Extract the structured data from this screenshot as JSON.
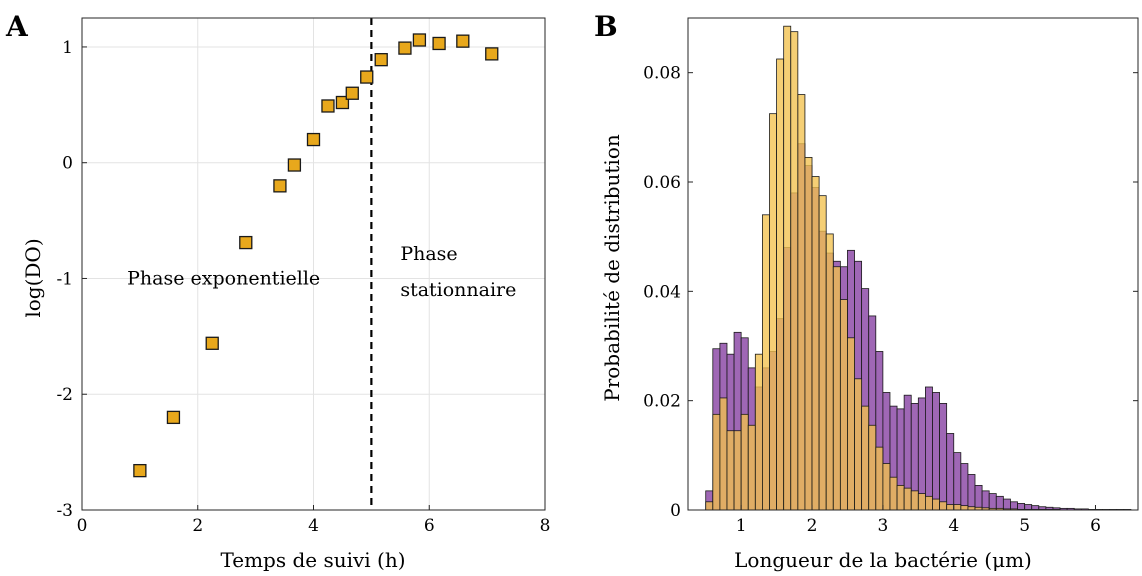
{
  "chart_data": [
    {
      "panel": "A",
      "type": "scatter",
      "xlabel": "Temps de suivi (h)",
      "ylabel": "log(DO)",
      "xlim": [
        0,
        8
      ],
      "ylim": [
        -3,
        1.25
      ],
      "xticks": [
        0,
        2,
        4,
        6,
        8
      ],
      "xtick_labels": [
        "0",
        "2",
        "4",
        "6",
        "8"
      ],
      "yticks": [
        -3,
        -2,
        -1,
        0,
        1
      ],
      "ytick_labels": [
        "-3",
        "-2",
        "-1",
        "0",
        "1"
      ],
      "grid": true,
      "marker": "square",
      "marker_color": "#E8A81C",
      "points": [
        {
          "x": 1.0,
          "y": -2.66
        },
        {
          "x": 1.58,
          "y": -2.2
        },
        {
          "x": 2.25,
          "y": -1.56
        },
        {
          "x": 2.83,
          "y": -0.69
        },
        {
          "x": 3.42,
          "y": -0.2
        },
        {
          "x": 3.67,
          "y": -0.02
        },
        {
          "x": 4.0,
          "y": 0.2
        },
        {
          "x": 4.25,
          "y": 0.49
        },
        {
          "x": 4.5,
          "y": 0.52
        },
        {
          "x": 4.67,
          "y": 0.6
        },
        {
          "x": 4.92,
          "y": 0.74
        },
        {
          "x": 5.17,
          "y": 0.89
        },
        {
          "x": 5.58,
          "y": 0.99
        },
        {
          "x": 5.83,
          "y": 1.06
        },
        {
          "x": 6.17,
          "y": 1.03
        },
        {
          "x": 6.58,
          "y": 1.05
        },
        {
          "x": 7.08,
          "y": 0.94
        }
      ],
      "vline": 5,
      "annotations": [
        {
          "text": "Phase exponentielle",
          "x": 0.78,
          "y": -1.0
        },
        {
          "text": "Phase",
          "x": 5.5,
          "y": -0.79
        },
        {
          "text": "stationnaire",
          "x": 5.5,
          "y": -1.1
        }
      ]
    },
    {
      "panel": "B",
      "type": "histogram",
      "xlabel": "Longueur de la bactérie (μm)",
      "ylabel": "Probabilité de distribution",
      "xlim": [
        0.25,
        6.6
      ],
      "ylim": [
        0,
        0.09
      ],
      "xticks": [
        1,
        2,
        3,
        4,
        5,
        6
      ],
      "xtick_labels": [
        "1",
        "2",
        "3",
        "4",
        "5",
        "6"
      ],
      "yticks": [
        0,
        0.02,
        0.04,
        0.06,
        0.08
      ],
      "ytick_labels": [
        "0",
        "0.02",
        "0.04",
        "0.06",
        "0.08"
      ],
      "grid": false,
      "bin_start": 0.5,
      "bin_width": 0.1,
      "series": [
        {
          "color": "#8E4CA8",
          "values": [
            0.0035,
            0.0295,
            0.0305,
            0.0285,
            0.0325,
            0.0315,
            0.026,
            0.0225,
            0.026,
            0.029,
            0.035,
            0.048,
            0.058,
            0.067,
            0.063,
            0.059,
            0.051,
            0.047,
            0.0455,
            0.0445,
            0.0475,
            0.0455,
            0.0405,
            0.0355,
            0.029,
            0.0215,
            0.019,
            0.0185,
            0.021,
            0.0195,
            0.0205,
            0.0225,
            0.0215,
            0.0195,
            0.014,
            0.0105,
            0.0085,
            0.0065,
            0.0045,
            0.0035,
            0.003,
            0.0025,
            0.002,
            0.0015,
            0.0012,
            0.001,
            0.0008,
            0.0006,
            0.0005,
            0.0004,
            0.0003,
            0.0003,
            0.0002,
            0.0002,
            0.0001,
            0.0001,
            0.0001,
            0.0001,
            0.0001,
            0.0001
          ]
        },
        {
          "color": "#F2C14E",
          "values": [
            0.0015,
            0.0175,
            0.0205,
            0.0145,
            0.0145,
            0.0175,
            0.0155,
            0.0285,
            0.054,
            0.0725,
            0.0825,
            0.0885,
            0.0875,
            0.076,
            0.0645,
            0.061,
            0.0575,
            0.0505,
            0.0445,
            0.0385,
            0.0315,
            0.024,
            0.019,
            0.0155,
            0.0115,
            0.0085,
            0.006,
            0.0045,
            0.004,
            0.0035,
            0.003,
            0.0025,
            0.002,
            0.0015,
            0.001,
            0.001,
            0.0008,
            0.0006,
            0.0005,
            0.0004,
            0.0003,
            0.0003,
            0.0002,
            0.0002,
            0.0001,
            0.0001,
            0.0001,
            0.0001,
            0.0001,
            0.0001,
            0.0,
            0.0,
            0.0,
            0.0,
            0.0,
            0.0,
            0.0,
            0.0,
            0.0,
            0.0
          ]
        }
      ]
    }
  ],
  "colors": {
    "marker": "#E8A81C",
    "purple": "#8E4CA8",
    "gold": "#F2C14E",
    "grid": "#e3e3e3"
  }
}
